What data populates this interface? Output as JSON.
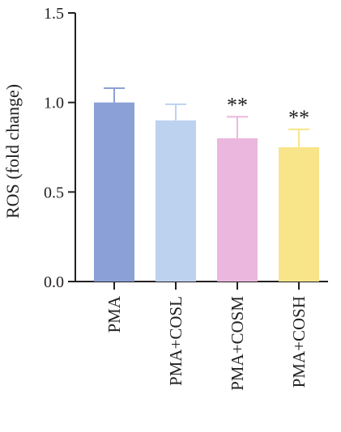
{
  "chart_data": {
    "type": "bar",
    "title": "",
    "xlabel": "",
    "ylabel": "ROS (fold change)",
    "ylim": [
      0,
      1.5
    ],
    "yticks": [
      "0.0",
      "0.5",
      "1.0",
      "1.5"
    ],
    "categories": [
      "PMA",
      "PMA+COSL",
      "PMA+COSM",
      "PMA+COSH"
    ],
    "values": [
      1.0,
      0.9,
      0.8,
      0.75
    ],
    "error_upper": [
      0.08,
      0.09,
      0.12,
      0.1
    ],
    "significance": [
      "",
      "",
      "**",
      "**"
    ],
    "colors": [
      "#8aa0d6",
      "#bcd2ef",
      "#ebb7de",
      "#f8e58a"
    ],
    "error_colors": [
      "#8aa0d6",
      "#bcd2ef",
      "#ebb7de",
      "#f8e58a"
    ],
    "grid": false,
    "legend": "none"
  }
}
